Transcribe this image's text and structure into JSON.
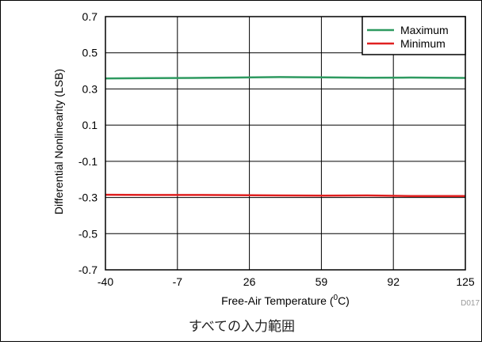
{
  "chart_data": {
    "type": "line",
    "title": "",
    "xlabel": "Free-Air Temperature (",
    "xlabel_sup": "0",
    "xlabel_end": "C)",
    "ylabel": "Differential Nonlinearity (LSB)",
    "x": [
      -40,
      -20,
      0,
      20,
      40,
      60,
      80,
      100,
      125
    ],
    "series": [
      {
        "name": "Maximum",
        "color": "#2e9a60",
        "values": [
          0.358,
          0.36,
          0.361,
          0.363,
          0.366,
          0.364,
          0.362,
          0.363,
          0.361
        ]
      },
      {
        "name": "Minimum",
        "color": "#e02020",
        "values": [
          -0.285,
          -0.286,
          -0.286,
          -0.287,
          -0.289,
          -0.29,
          -0.289,
          -0.292,
          -0.292
        ]
      }
    ],
    "xlim": [
      -40,
      125
    ],
    "ylim": [
      -0.7,
      0.7
    ],
    "xticks": [
      "-40",
      "-7",
      "26",
      "59",
      "92",
      "125"
    ],
    "xtick_values": [
      -40,
      -7,
      26,
      59,
      92,
      125
    ],
    "yticks": [
      "0.7",
      "0.5",
      "0.3",
      "0.1",
      "-0.1",
      "-0.3",
      "-0.5",
      "-0.7"
    ],
    "ytick_values": [
      0.7,
      0.5,
      0.3,
      0.1,
      -0.1,
      -0.3,
      -0.5,
      -0.7
    ],
    "grid": true,
    "legend_position": "top-right"
  },
  "figure_code": "D017",
  "caption": "すべての入力範囲"
}
